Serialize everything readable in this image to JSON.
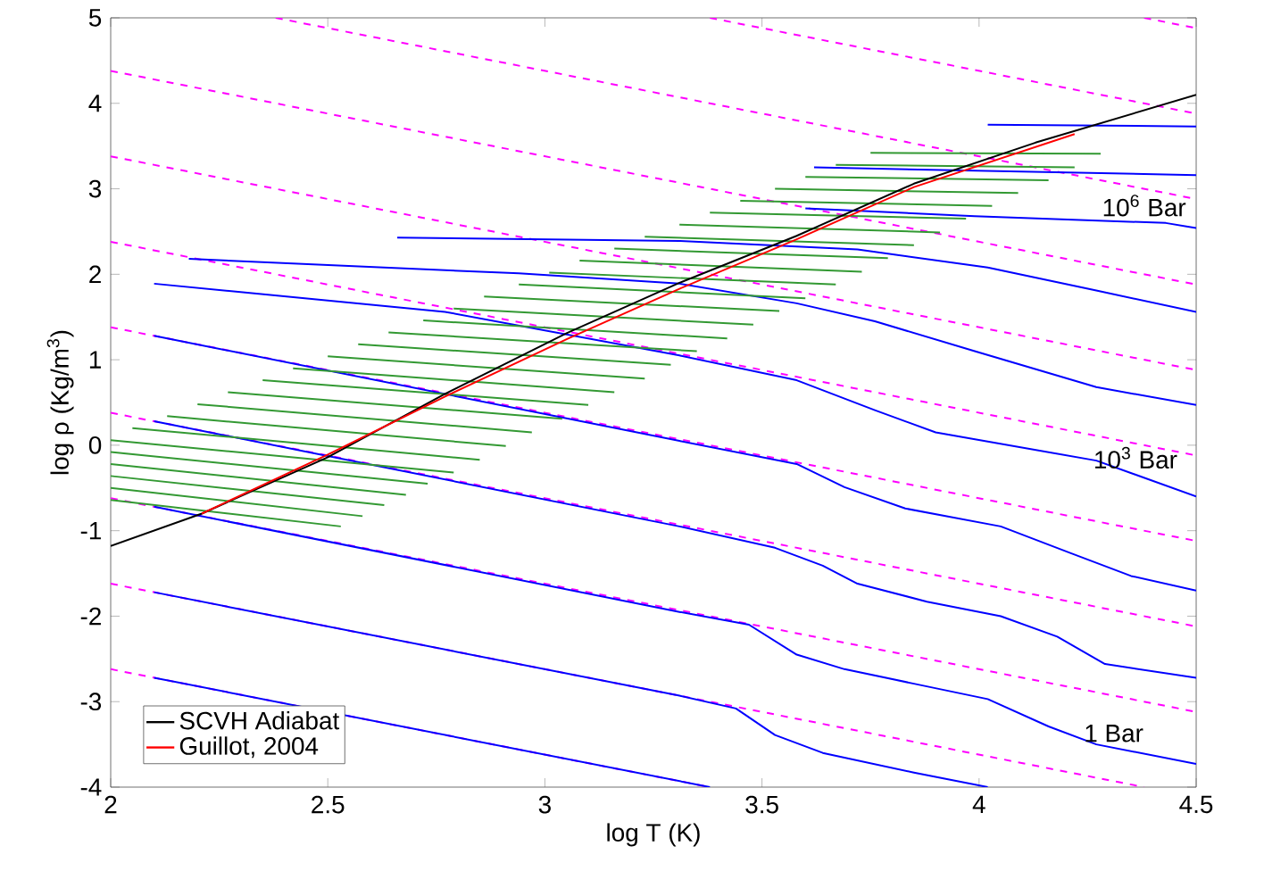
{
  "chart_data": {
    "type": "line",
    "xlabel": "log T (K)",
    "ylabel": "log ρ (Kg/m$^{3}$)",
    "xlim": [
      2,
      4.5
    ],
    "ylim": [
      -4,
      5
    ],
    "xticks": [
      2,
      2.5,
      3,
      3.5,
      4,
      4.5
    ],
    "yticks": [
      -4,
      -3,
      -2,
      -1,
      0,
      1,
      2,
      3,
      4,
      5
    ],
    "legend": "bottom left",
    "annotations": [
      {
        "text": "10$^{6}$ Bar",
        "x": 4.38,
        "y": 2.61
      },
      {
        "text": "10$^{3}$ Bar",
        "x": 4.36,
        "y": -0.34
      },
      {
        "text": "1 Bar",
        "x": 4.31,
        "y": -3.54
      }
    ],
    "series": [
      {
        "color": "#ff00ff",
        "line_style": "dashed",
        "x": [
          4.38,
          4.5
        ],
        "values": [
          5,
          4.88
        ]
      },
      {
        "color": "#ff00ff",
        "line_style": "dashed",
        "x": [
          3.38,
          4.5
        ],
        "values": [
          5,
          3.88
        ]
      },
      {
        "color": "#ff00ff",
        "line_style": "dashed",
        "x": [
          2.38,
          4.5
        ],
        "values": [
          5,
          2.88
        ]
      },
      {
        "color": "#ff00ff",
        "line_style": "dashed",
        "x": [
          2,
          4.5
        ],
        "values": [
          4.38,
          1.88
        ]
      },
      {
        "color": "#ff00ff",
        "line_style": "dashed",
        "x": [
          2,
          4.5
        ],
        "values": [
          3.38,
          0.88
        ]
      },
      {
        "color": "#ff00ff",
        "line_style": "dashed",
        "x": [
          2,
          4.5
        ],
        "values": [
          2.38,
          -0.12
        ]
      },
      {
        "color": "#ff00ff",
        "line_style": "dashed",
        "x": [
          2,
          4.5
        ],
        "values": [
          1.38,
          -1.12
        ]
      },
      {
        "color": "#ff00ff",
        "line_style": "dashed",
        "x": [
          2,
          4.5
        ],
        "values": [
          0.38,
          -2.12
        ]
      },
      {
        "color": "#ff00ff",
        "line_style": "dashed",
        "x": [
          2,
          4.5
        ],
        "values": [
          -0.62,
          -3.12
        ]
      },
      {
        "color": "#ff00ff",
        "line_style": "dashed",
        "x": [
          2,
          4.38
        ],
        "values": [
          -1.62,
          -4
        ]
      },
      {
        "color": "#ff00ff",
        "line_style": "dashed",
        "x": [
          2,
          3.38
        ],
        "values": [
          -2.62,
          -4
        ]
      },
      {
        "color": "#0000ff",
        "x": [
          2.1,
          3.38
        ],
        "values": [
          -2.72,
          -4.0
        ]
      },
      {
        "color": "#0000ff",
        "x": [
          2.1,
          3.31,
          3.44,
          3.53,
          3.64,
          3.85,
          4.02
        ],
        "values": [
          -1.72,
          -2.93,
          -3.08,
          -3.39,
          -3.6,
          -3.83,
          -4.0
        ]
      },
      {
        "color": "#0000ff",
        "x": [
          2.1,
          3.31,
          3.47,
          3.58,
          3.69,
          3.85,
          4.02,
          4.16,
          4.27,
          4.5
        ],
        "values": [
          -0.72,
          -1.95,
          -2.1,
          -2.45,
          -2.62,
          -2.79,
          -2.97,
          -3.29,
          -3.5,
          -3.73
        ]
      },
      {
        "color": "#0000ff",
        "x": [
          2.1,
          3.31,
          3.53,
          3.64,
          3.72,
          3.88,
          4.05,
          4.18,
          4.29,
          4.5
        ],
        "values": [
          0.28,
          -0.95,
          -1.2,
          -1.41,
          -1.62,
          -1.83,
          -2.0,
          -2.24,
          -2.56,
          -2.72
        ]
      },
      {
        "color": "#0000ff",
        "x": [
          2.1,
          3.31,
          3.58,
          3.69,
          3.83,
          4.05,
          4.21,
          4.35,
          4.5
        ],
        "values": [
          1.28,
          0.05,
          -0.22,
          -0.49,
          -0.74,
          -0.95,
          -1.26,
          -1.53,
          -1.7
        ]
      },
      {
        "color": "#0000ff",
        "x": [
          2.1,
          2.77,
          3.31,
          3.58,
          3.76,
          3.9,
          4.27,
          4.5
        ],
        "values": [
          1.89,
          1.56,
          1.05,
          0.76,
          0.41,
          0.15,
          -0.18,
          -0.6
        ]
      },
      {
        "color": "#0000ff",
        "x": [
          2.18,
          2.94,
          3.31,
          3.58,
          3.76,
          3.99,
          4.27,
          4.5
        ],
        "values": [
          2.18,
          2.01,
          1.89,
          1.66,
          1.45,
          1.1,
          0.68,
          0.47
        ]
      },
      {
        "color": "#0000ff",
        "x": [
          2.66,
          3.31,
          3.72,
          4.02,
          4.27,
          4.5
        ],
        "values": [
          2.43,
          2.39,
          2.29,
          2.08,
          1.81,
          1.56
        ]
      },
      {
        "color": "#0000ff",
        "x": [
          3.6,
          3.99,
          4.43,
          4.5
        ],
        "values": [
          2.77,
          2.68,
          2.6,
          2.54
        ]
      },
      {
        "color": "#0000ff",
        "x": [
          3.62,
          4.5
        ],
        "values": [
          3.25,
          3.16
        ]
      },
      {
        "color": "#0000ff",
        "x": [
          4.02,
          4.5
        ],
        "values": [
          3.75,
          3.73
        ]
      },
      {
        "color": "#339933",
        "x": [
          2,
          2.53
        ],
        "values": [
          -0.64,
          -0.95
        ]
      },
      {
        "color": "#339933",
        "x": [
          2,
          2.58
        ],
        "values": [
          -0.5,
          -0.83
        ]
      },
      {
        "color": "#339933",
        "x": [
          2,
          2.63
        ],
        "values": [
          -0.36,
          -0.7
        ]
      },
      {
        "color": "#339933",
        "x": [
          2,
          2.68
        ],
        "values": [
          -0.22,
          -0.58
        ]
      },
      {
        "color": "#339933",
        "x": [
          2,
          2.73
        ],
        "values": [
          -0.08,
          -0.45
        ]
      },
      {
        "color": "#339933",
        "x": [
          2,
          2.79
        ],
        "values": [
          0.06,
          -0.32
        ]
      },
      {
        "color": "#339933",
        "x": [
          2.05,
          2.85
        ],
        "values": [
          0.2,
          -0.17
        ]
      },
      {
        "color": "#339933",
        "x": [
          2.13,
          2.91
        ],
        "values": [
          0.34,
          -0.01
        ]
      },
      {
        "color": "#339933",
        "x": [
          2.2,
          2.97
        ],
        "values": [
          0.48,
          0.15
        ]
      },
      {
        "color": "#339933",
        "x": [
          2.27,
          3.04
        ],
        "values": [
          0.62,
          0.31
        ]
      },
      {
        "color": "#339933",
        "x": [
          2.35,
          3.1
        ],
        "values": [
          0.76,
          0.47
        ]
      },
      {
        "color": "#339933",
        "x": [
          2.42,
          3.16
        ],
        "values": [
          0.9,
          0.62
        ]
      },
      {
        "color": "#339933",
        "x": [
          2.5,
          3.23
        ],
        "values": [
          1.04,
          0.78
        ]
      },
      {
        "color": "#339933",
        "x": [
          2.57,
          3.29
        ],
        "values": [
          1.18,
          0.94
        ]
      },
      {
        "color": "#339933",
        "x": [
          2.64,
          3.35
        ],
        "values": [
          1.32,
          1.1
        ]
      },
      {
        "color": "#339933",
        "x": [
          2.72,
          3.42
        ],
        "values": [
          1.46,
          1.25
        ]
      },
      {
        "color": "#339933",
        "x": [
          2.79,
          3.48
        ],
        "values": [
          1.6,
          1.41
        ]
      },
      {
        "color": "#339933",
        "x": [
          2.86,
          3.54
        ],
        "values": [
          1.74,
          1.57
        ]
      },
      {
        "color": "#339933",
        "x": [
          2.94,
          3.6
        ],
        "values": [
          1.88,
          1.72
        ]
      },
      {
        "color": "#339933",
        "x": [
          3.01,
          3.67
        ],
        "values": [
          2.02,
          1.88
        ]
      },
      {
        "color": "#339933",
        "x": [
          3.08,
          3.73
        ],
        "values": [
          2.16,
          2.03
        ]
      },
      {
        "color": "#339933",
        "x": [
          3.16,
          3.79
        ],
        "values": [
          2.3,
          2.19
        ]
      },
      {
        "color": "#339933",
        "x": [
          3.23,
          3.85
        ],
        "values": [
          2.44,
          2.34
        ]
      },
      {
        "color": "#339933",
        "x": [
          3.31,
          3.91
        ],
        "values": [
          2.58,
          2.49
        ]
      },
      {
        "color": "#339933",
        "x": [
          3.38,
          3.97
        ],
        "values": [
          2.72,
          2.65
        ]
      },
      {
        "color": "#339933",
        "x": [
          3.45,
          4.03
        ],
        "values": [
          2.86,
          2.8
        ]
      },
      {
        "color": "#339933",
        "x": [
          3.53,
          4.09
        ],
        "values": [
          3.0,
          2.95
        ]
      },
      {
        "color": "#339933",
        "x": [
          3.6,
          4.16
        ],
        "values": [
          3.14,
          3.1
        ]
      },
      {
        "color": "#339933",
        "x": [
          3.67,
          4.22
        ],
        "values": [
          3.28,
          3.25
        ]
      },
      {
        "color": "#339933",
        "x": [
          3.75,
          4.28
        ],
        "values": [
          3.42,
          3.41
        ]
      },
      {
        "name": "SCVH Adiabat",
        "color": "#000000",
        "x": [
          2,
          2.21,
          2.5,
          2.77,
          3.05,
          3.31,
          3.58,
          3.85,
          4.13,
          4.5
        ],
        "values": [
          -1.18,
          -0.8,
          -0.14,
          0.6,
          1.31,
          1.9,
          2.45,
          3.06,
          3.54,
          4.1
        ]
      },
      {
        "name": "Guillot, 2004",
        "color": "#ff0000",
        "x": [
          2.21,
          2.5,
          2.77,
          3.05,
          3.31,
          3.58,
          3.85,
          4.22
        ],
        "values": [
          -0.8,
          -0.11,
          0.57,
          1.24,
          1.83,
          2.41,
          3.02,
          3.64
        ]
      }
    ]
  }
}
